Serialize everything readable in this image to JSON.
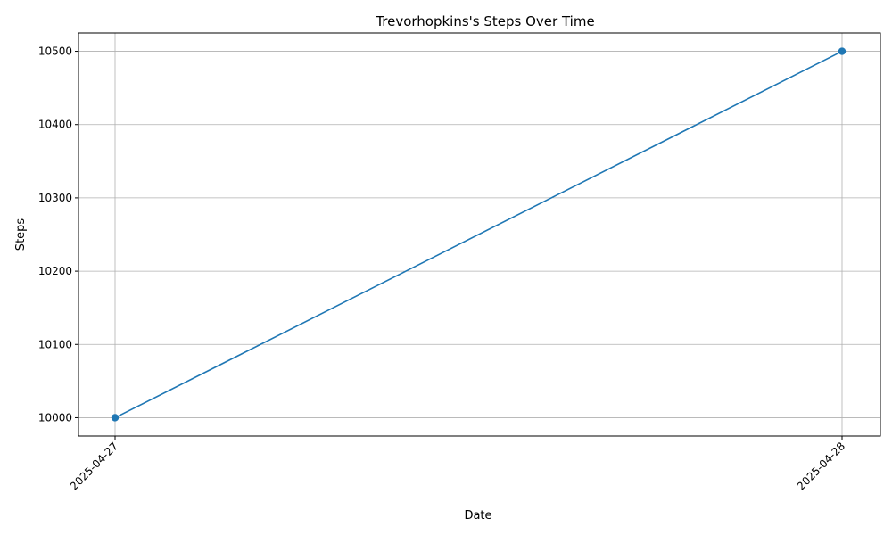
{
  "chart_data": {
    "type": "line",
    "title": "Trevorhopkins's Steps Over Time",
    "xlabel": "Date",
    "ylabel": "Steps",
    "x": [
      "2025-04-27",
      "2025-04-28"
    ],
    "series": [
      {
        "values": [
          10000,
          10500
        ],
        "color": "#1f77b4",
        "marker": "circle"
      }
    ],
    "ylim": [
      9975,
      10525
    ],
    "yticks": [
      10000,
      10100,
      10200,
      10300,
      10400,
      10500
    ],
    "yticks_labels": [
      "10000",
      "10100",
      "10200",
      "10300",
      "10400",
      "10500"
    ],
    "xtick_rotation": "45 degrees",
    "grid": true,
    "grid_color": "#b0b0b0",
    "legend": "none"
  }
}
